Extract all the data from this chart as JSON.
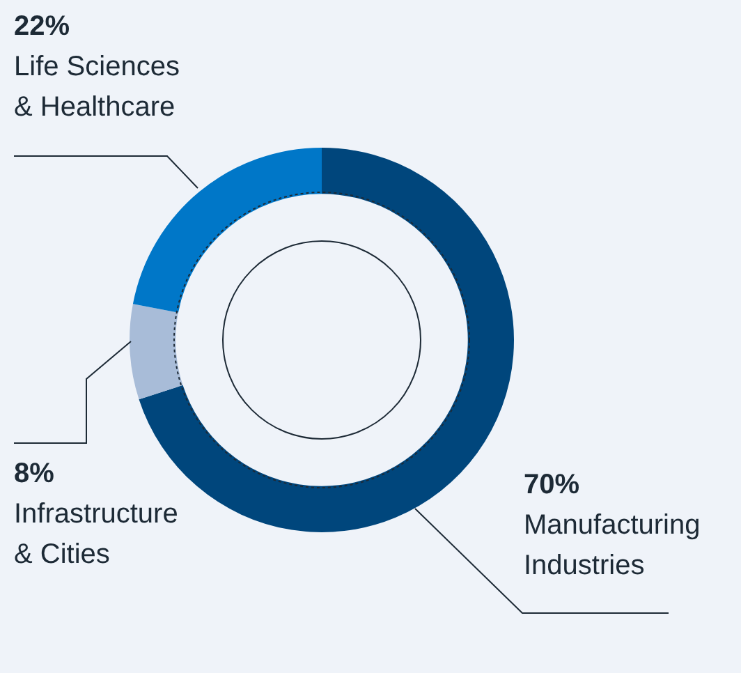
{
  "chart_data": {
    "type": "donut",
    "categories": [
      "Manufacturing Industries",
      "Infrastructure & Cities",
      "Life Sciences & Healthcare"
    ],
    "values": [
      70,
      8,
      22
    ],
    "colors": [
      "#00467c",
      "#a8bcd8",
      "#0077c8"
    ],
    "value_labels": [
      "70%",
      "8%",
      "22%"
    ]
  }
}
